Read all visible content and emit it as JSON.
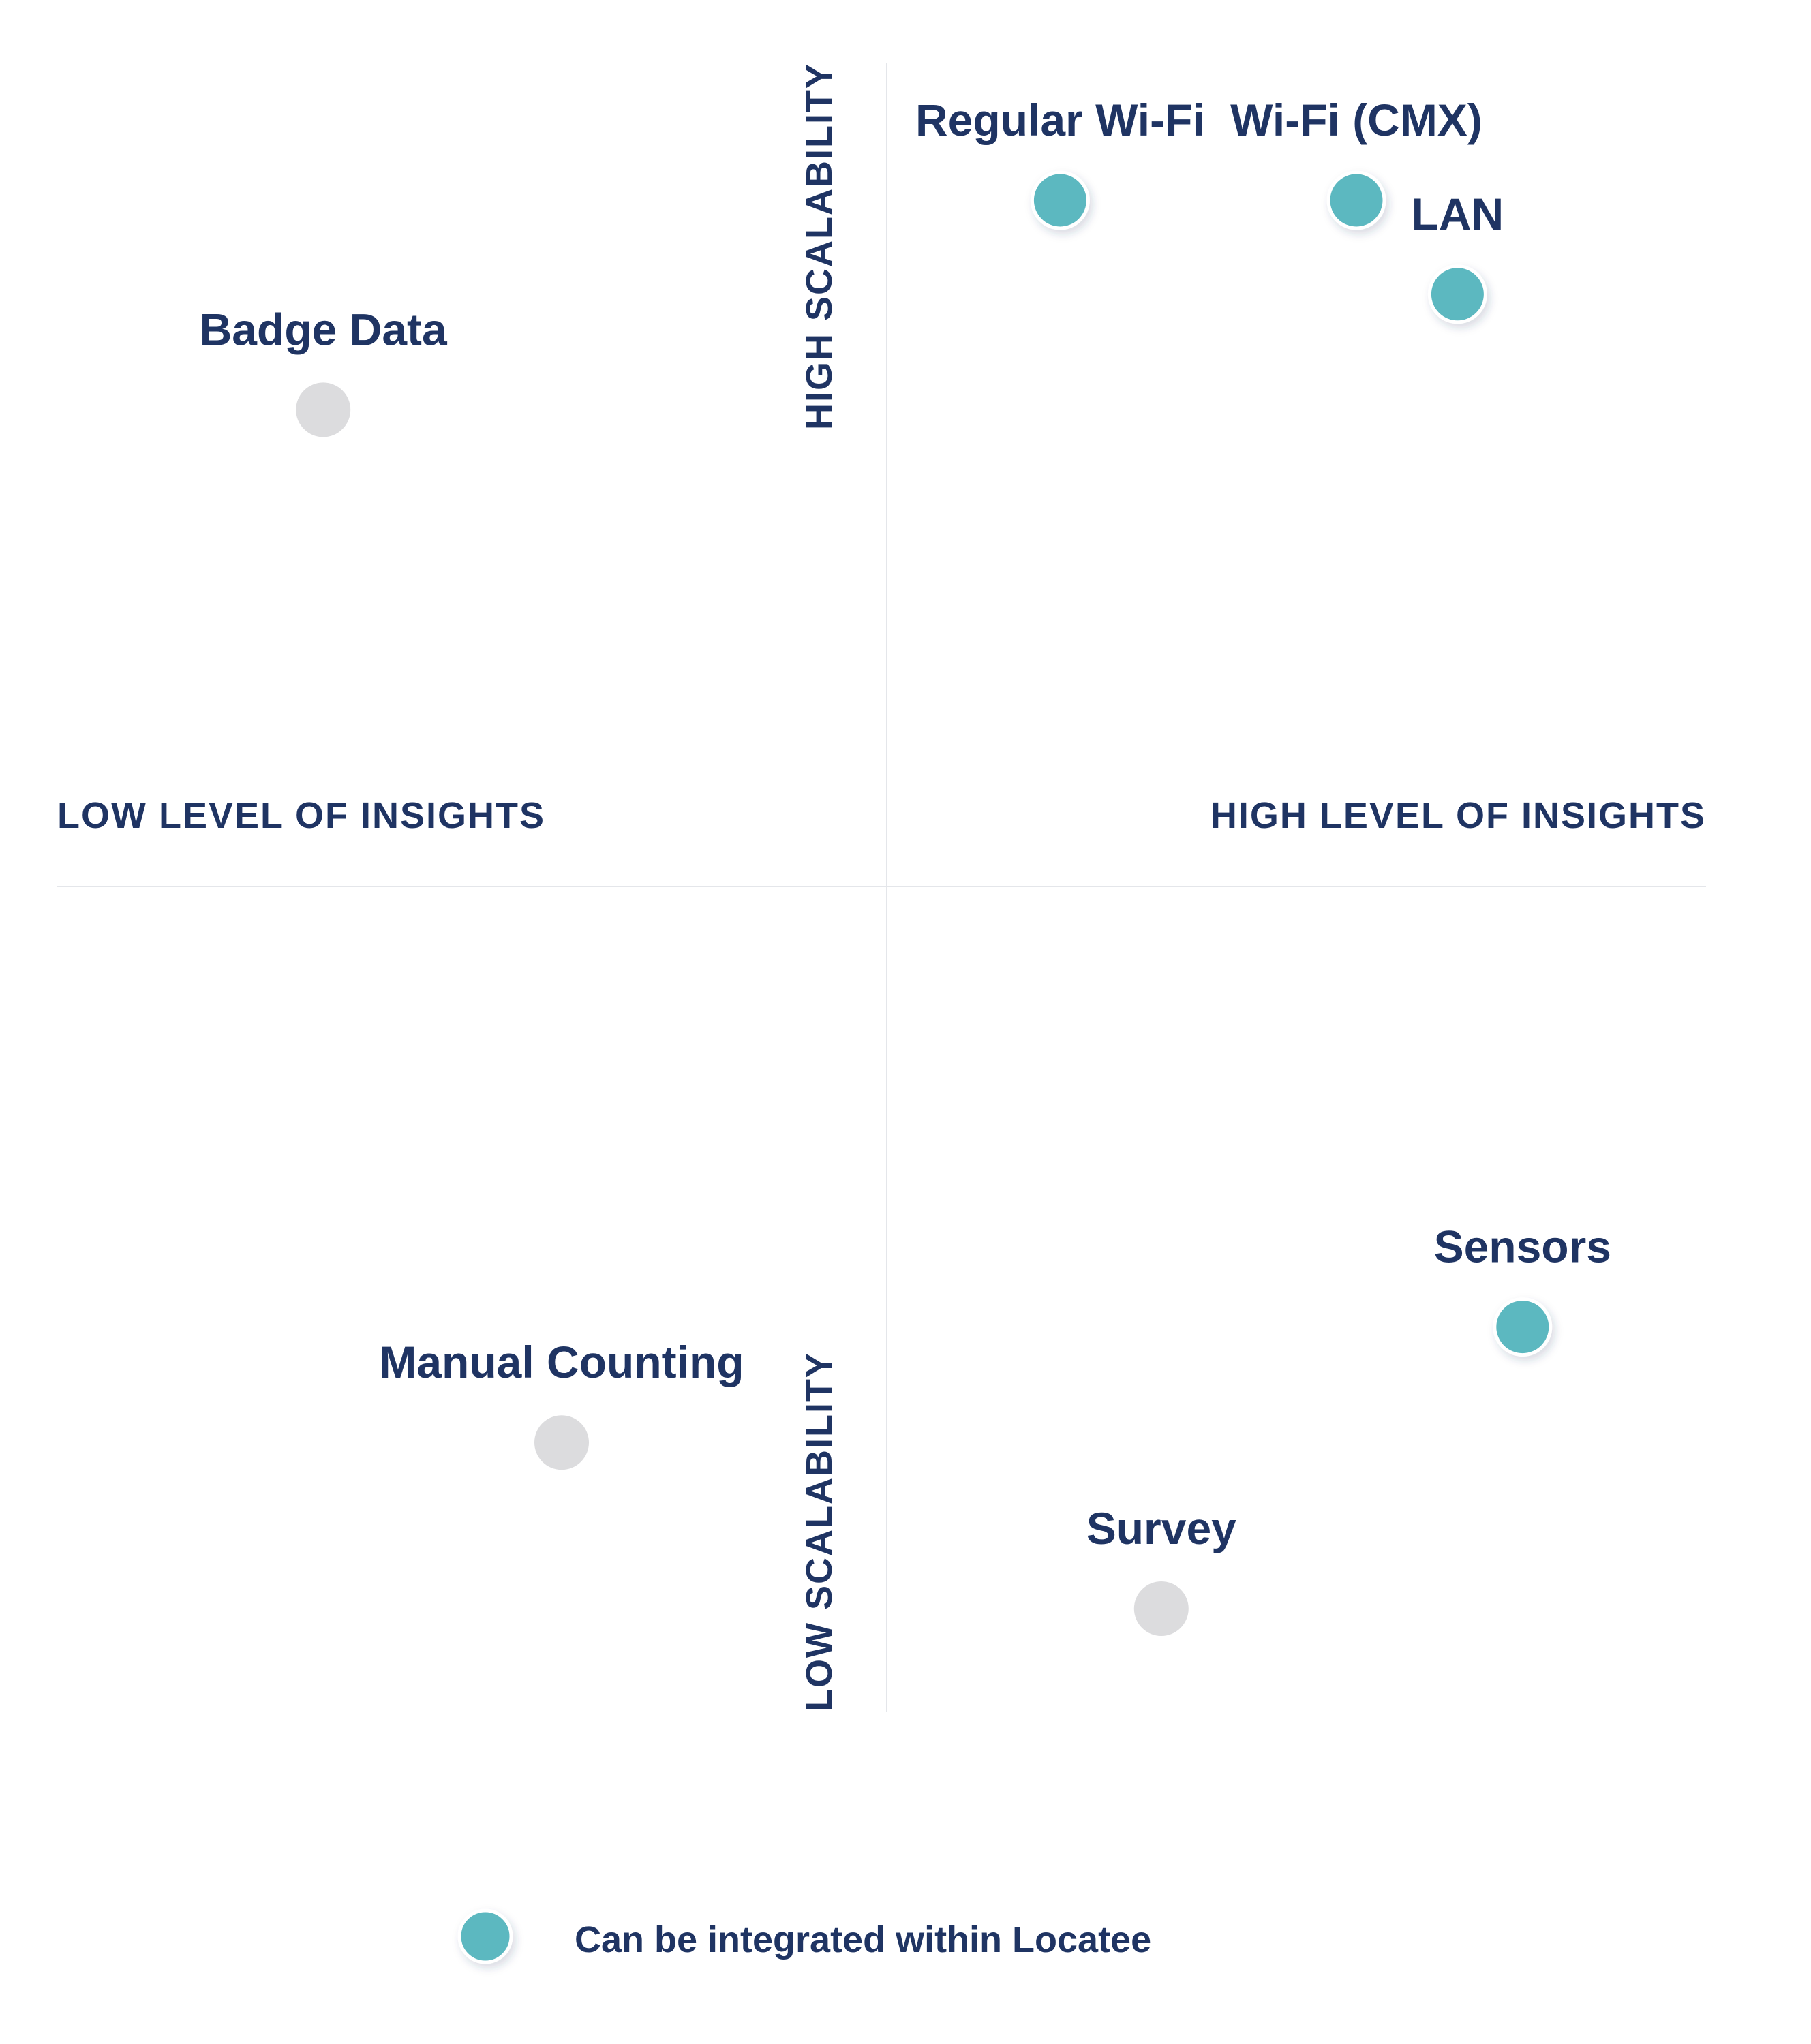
{
  "chart_data": {
    "type": "scatter",
    "x_axis": {
      "low_label": "LOW LEVEL OF INSIGHTS",
      "high_label": "HIGH LEVEL OF INSIGHTS",
      "range": [
        -1,
        1
      ]
    },
    "y_axis": {
      "low_label": "LOW SCALABILITY",
      "high_label": "HIGH SCALABILITY",
      "range": [
        -1,
        1
      ]
    },
    "grid": false,
    "points": [
      {
        "label": "Regular Wi-Fi",
        "x": 0.24,
        "y": 0.95,
        "integrated": true
      },
      {
        "label": "Wi-Fi (CMX)",
        "x": 0.65,
        "y": 0.95,
        "integrated": true
      },
      {
        "label": "LAN",
        "x": 0.79,
        "y": 0.82,
        "integrated": true
      },
      {
        "label": "Badge Data",
        "x": -0.78,
        "y": 0.66,
        "integrated": false
      },
      {
        "label": "Sensors",
        "x": 0.88,
        "y": -0.61,
        "integrated": true
      },
      {
        "label": "Manual Counting",
        "x": -0.45,
        "y": -0.77,
        "integrated": false
      },
      {
        "label": "Survey",
        "x": 0.38,
        "y": -1.0,
        "integrated": false
      }
    ],
    "legend": {
      "label": "Can be integrated within Locatee",
      "placement": "bottom"
    }
  },
  "colors": {
    "integrated": "#5bb8c0",
    "not_integrated": "#dcdcde",
    "text": "#1f3463",
    "axis": "#e4e6ea"
  }
}
